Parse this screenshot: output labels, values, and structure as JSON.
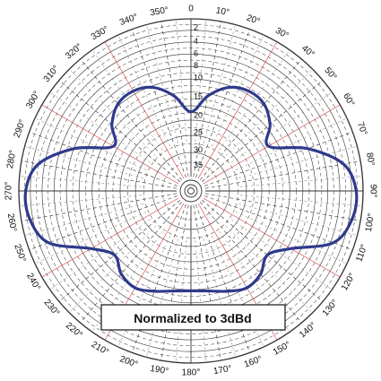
{
  "chart_data": {
    "type": "polar-line",
    "title": "",
    "angle_unit": "°",
    "angle_ticks": [
      {
        "deg": 0,
        "label": "0"
      },
      {
        "deg": 10,
        "label": "10°"
      },
      {
        "deg": 20,
        "label": "20°"
      },
      {
        "deg": 30,
        "label": "30°"
      },
      {
        "deg": 40,
        "label": "40°"
      },
      {
        "deg": 50,
        "label": "50°"
      },
      {
        "deg": 60,
        "label": "60°"
      },
      {
        "deg": 70,
        "label": "70°"
      },
      {
        "deg": 80,
        "label": "80°"
      },
      {
        "deg": 90,
        "label": "90°"
      },
      {
        "deg": 100,
        "label": "100°"
      },
      {
        "deg": 110,
        "label": "110°"
      },
      {
        "deg": 120,
        "label": "120°"
      },
      {
        "deg": 130,
        "label": "130°"
      },
      {
        "deg": 140,
        "label": "140°"
      },
      {
        "deg": 150,
        "label": "150°"
      },
      {
        "deg": 160,
        "label": "160°"
      },
      {
        "deg": 170,
        "label": "170°"
      },
      {
        "deg": 180,
        "label": "180°"
      },
      {
        "deg": 190,
        "label": "190°"
      },
      {
        "deg": 200,
        "label": "200°"
      },
      {
        "deg": 210,
        "label": "210°"
      },
      {
        "deg": 220,
        "label": "220°"
      },
      {
        "deg": 230,
        "label": "230°"
      },
      {
        "deg": 240,
        "label": "240°"
      },
      {
        "deg": 250,
        "label": "250°"
      },
      {
        "deg": 260,
        "label": "260°"
      },
      {
        "deg": 270,
        "label": "270°"
      },
      {
        "deg": 280,
        "label": "280°"
      },
      {
        "deg": 290,
        "label": "290°"
      },
      {
        "deg": 300,
        "label": "300°"
      },
      {
        "deg": 310,
        "label": "310°"
      },
      {
        "deg": 320,
        "label": "320°"
      },
      {
        "deg": 330,
        "label": "330°"
      },
      {
        "deg": 340,
        "label": "340°"
      },
      {
        "deg": 350,
        "label": "350°"
      }
    ],
    "radial_ticks": [
      "2",
      "4",
      "6",
      "8",
      "10",
      "15",
      "20",
      "25",
      "30",
      "35"
    ],
    "radial_scale": "relative-dB (0 at outer ring, increasing inward)",
    "grid": true,
    "annotation": "Normalized to 3dBd",
    "series": [
      {
        "color": "#2e3a8c",
        "points": [
          {
            "angle": 0,
            "r": 0.46
          },
          {
            "angle": 10,
            "r": 0.56
          },
          {
            "angle": 20,
            "r": 0.64
          },
          {
            "angle": 30,
            "r": 0.67
          },
          {
            "angle": 40,
            "r": 0.66
          },
          {
            "angle": 50,
            "r": 0.6
          },
          {
            "angle": 60,
            "r": 0.52
          },
          {
            "angle": 70,
            "r": 0.72
          },
          {
            "angle": 80,
            "r": 0.9
          },
          {
            "angle": 90,
            "r": 0.96
          },
          {
            "angle": 100,
            "r": 0.95
          },
          {
            "angle": 110,
            "r": 0.88
          },
          {
            "angle": 120,
            "r": 0.67
          },
          {
            "angle": 130,
            "r": 0.58
          },
          {
            "angle": 140,
            "r": 0.63
          },
          {
            "angle": 150,
            "r": 0.65
          },
          {
            "angle": 160,
            "r": 0.62
          },
          {
            "angle": 170,
            "r": 0.59
          },
          {
            "angle": 180,
            "r": 0.58
          },
          {
            "angle": 190,
            "r": 0.59
          },
          {
            "angle": 200,
            "r": 0.62
          },
          {
            "angle": 210,
            "r": 0.65
          },
          {
            "angle": 220,
            "r": 0.63
          },
          {
            "angle": 230,
            "r": 0.58
          },
          {
            "angle": 240,
            "r": 0.67
          },
          {
            "angle": 250,
            "r": 0.88
          },
          {
            "angle": 260,
            "r": 0.95
          },
          {
            "angle": 270,
            "r": 0.96
          },
          {
            "angle": 280,
            "r": 0.9
          },
          {
            "angle": 290,
            "r": 0.72
          },
          {
            "angle": 300,
            "r": 0.52
          },
          {
            "angle": 310,
            "r": 0.6
          },
          {
            "angle": 320,
            "r": 0.66
          },
          {
            "angle": 330,
            "r": 0.67
          },
          {
            "angle": 340,
            "r": 0.64
          },
          {
            "angle": 350,
            "r": 0.56
          }
        ]
      }
    ]
  },
  "colors": {
    "grid": "#333333",
    "grid_dashed": "#555555",
    "accent_radials": "#d23a3a",
    "pattern": "#2e3a8c"
  }
}
